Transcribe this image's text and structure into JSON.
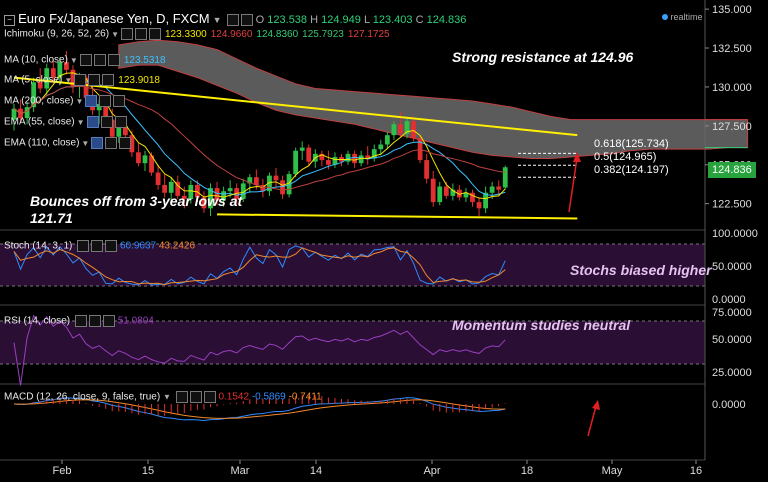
{
  "header": {
    "title": "Euro Fx/Japanese Yen, D, FXCM",
    "ohlc": {
      "o_label": "O",
      "o": "123.538",
      "h_label": "H",
      "h": "124.949",
      "l_label": "L",
      "l": "123.403",
      "c_label": "C",
      "c": "124.836"
    },
    "logo": "realtime"
  },
  "indicators": [
    {
      "label": "Ichimoku (9, 26, 52, 26)",
      "values": [
        "123.3300",
        "124.9660",
        "124.8360",
        "125.7923",
        "127.1725"
      ],
      "colors": [
        "#f2e600",
        "#e04040",
        "#2fd07a",
        "#3ec06a",
        "#e04040"
      ]
    },
    {
      "label": "MA (10, close)",
      "values": [
        "123.5318"
      ],
      "colors": [
        "#3cc0ff"
      ]
    },
    {
      "label": "MA (5, close)",
      "values": [
        "123.9018"
      ],
      "colors": [
        "#f2e600"
      ]
    },
    {
      "label": "MA (200, close)",
      "values": [],
      "colors": []
    },
    {
      "label": "EMA (55, close)",
      "values": [],
      "colors": []
    },
    {
      "label": "EMA (110, close)",
      "values": [],
      "colors": []
    }
  ],
  "annotations": {
    "resistance": "Strong resistance at 124.96",
    "bounce_line1": "Bounces off from 3-year lows at",
    "bounce_line2": "121.71",
    "stochs": "Stochs biased higher",
    "momentum": "Momentum studies neutral"
  },
  "fib_labels": [
    "0.618(125.734)",
    "0.5(124.965)",
    "0.382(124.197)"
  ],
  "last_price": "124.836",
  "panes": {
    "stoch": {
      "label": "Stoch (14, 3, 1)",
      "values": [
        "60.9637",
        "43.2426"
      ],
      "axis": [
        "100.0000",
        "50.0000",
        "0.0000"
      ]
    },
    "rsi": {
      "label": "RSI (14, close)",
      "values": [
        "51.0804"
      ],
      "axis": [
        "75.0000",
        "50.0000",
        "25.0000"
      ]
    },
    "macd": {
      "label": "MACD (12, 26, close, 9, false, true)",
      "values": [
        "0.1542",
        "-0.5869",
        "-0.7411"
      ],
      "axis": [
        "0.0000"
      ]
    }
  },
  "colors": {
    "up": "#2fc04a",
    "down": "#e23030",
    "cloud": "#6b6b6b",
    "trend": "#ffef00",
    "ma10": "#3cc0ff",
    "ma5": "#f2e600",
    "stoch_k": "#2e8bff",
    "stoch_d": "#f08a2c",
    "rsi": "#9a3fc0",
    "macd": "#2e8bff",
    "signal": "#f08a2c",
    "hist": "#e23030",
    "band": "#2a0e34"
  },
  "chart_data": {
    "type": "candlestick",
    "price_axis_ticks": [
      135.0,
      132.5,
      130.0,
      127.5,
      125.0,
      122.5
    ],
    "price_axis_labels": [
      "135.000",
      "132.500",
      "130.000",
      "127.500",
      "125.000",
      "122.500"
    ],
    "x_tick_labels": [
      "Feb",
      "15",
      "Mar",
      "14",
      "Apr",
      "18",
      "May",
      "16"
    ],
    "ylim": [
      121.0,
      135.2
    ],
    "candles": [
      {
        "o": 127.9,
        "h": 128.9,
        "l": 127.2,
        "c": 128.6
      },
      {
        "o": 128.6,
        "h": 129.2,
        "l": 127.7,
        "c": 128.0
      },
      {
        "o": 128.0,
        "h": 129.0,
        "l": 127.6,
        "c": 128.7
      },
      {
        "o": 128.7,
        "h": 130.6,
        "l": 128.4,
        "c": 130.3
      },
      {
        "o": 130.3,
        "h": 131.2,
        "l": 129.6,
        "c": 129.9
      },
      {
        "o": 129.9,
        "h": 131.5,
        "l": 129.5,
        "c": 131.2
      },
      {
        "o": 131.2,
        "h": 131.8,
        "l": 130.2,
        "c": 130.6
      },
      {
        "o": 130.6,
        "h": 131.9,
        "l": 130.1,
        "c": 131.6
      },
      {
        "o": 131.6,
        "h": 132.3,
        "l": 130.8,
        "c": 131.1
      },
      {
        "o": 131.1,
        "h": 131.4,
        "l": 129.6,
        "c": 130.0
      },
      {
        "o": 130.0,
        "h": 130.9,
        "l": 129.3,
        "c": 130.6
      },
      {
        "o": 130.6,
        "h": 130.8,
        "l": 129.0,
        "c": 129.3
      },
      {
        "o": 129.3,
        "h": 130.1,
        "l": 128.2,
        "c": 128.5
      },
      {
        "o": 128.5,
        "h": 129.2,
        "l": 127.6,
        "c": 128.9
      },
      {
        "o": 128.9,
        "h": 129.3,
        "l": 127.6,
        "c": 127.9
      },
      {
        "o": 127.9,
        "h": 128.6,
        "l": 126.5,
        "c": 126.8
      },
      {
        "o": 126.8,
        "h": 127.7,
        "l": 126.4,
        "c": 127.5
      },
      {
        "o": 127.5,
        "h": 127.9,
        "l": 126.6,
        "c": 126.9
      },
      {
        "o": 126.9,
        "h": 127.2,
        "l": 125.5,
        "c": 125.8
      },
      {
        "o": 125.8,
        "h": 126.4,
        "l": 124.9,
        "c": 125.1
      },
      {
        "o": 125.1,
        "h": 125.9,
        "l": 124.6,
        "c": 125.6
      },
      {
        "o": 125.6,
        "h": 125.8,
        "l": 124.3,
        "c": 124.5
      },
      {
        "o": 124.5,
        "h": 125.0,
        "l": 123.4,
        "c": 123.7
      },
      {
        "o": 123.7,
        "h": 124.4,
        "l": 122.9,
        "c": 123.2
      },
      {
        "o": 123.2,
        "h": 124.2,
        "l": 122.6,
        "c": 123.9
      },
      {
        "o": 123.9,
        "h": 124.3,
        "l": 122.8,
        "c": 123.0
      },
      {
        "o": 123.0,
        "h": 123.6,
        "l": 122.2,
        "c": 122.8
      },
      {
        "o": 122.8,
        "h": 124.0,
        "l": 122.5,
        "c": 123.7
      },
      {
        "o": 123.7,
        "h": 124.0,
        "l": 122.6,
        "c": 122.9
      },
      {
        "o": 122.9,
        "h": 123.3,
        "l": 121.9,
        "c": 122.2
      },
      {
        "o": 122.2,
        "h": 123.8,
        "l": 121.7,
        "c": 123.5
      },
      {
        "o": 123.5,
        "h": 123.9,
        "l": 122.4,
        "c": 122.7
      },
      {
        "o": 122.7,
        "h": 123.6,
        "l": 122.3,
        "c": 123.3
      },
      {
        "o": 123.3,
        "h": 124.0,
        "l": 122.9,
        "c": 123.5
      },
      {
        "o": 123.5,
        "h": 123.8,
        "l": 122.4,
        "c": 122.8
      },
      {
        "o": 122.8,
        "h": 124.1,
        "l": 122.6,
        "c": 123.8
      },
      {
        "o": 123.8,
        "h": 124.4,
        "l": 123.2,
        "c": 124.2
      },
      {
        "o": 124.2,
        "h": 124.7,
        "l": 123.4,
        "c": 123.7
      },
      {
        "o": 123.7,
        "h": 124.1,
        "l": 122.9,
        "c": 123.3
      },
      {
        "o": 123.3,
        "h": 124.5,
        "l": 123.0,
        "c": 124.3
      },
      {
        "o": 124.3,
        "h": 124.8,
        "l": 123.6,
        "c": 124.0
      },
      {
        "o": 124.0,
        "h": 124.3,
        "l": 122.8,
        "c": 123.1
      },
      {
        "o": 123.1,
        "h": 124.6,
        "l": 122.9,
        "c": 124.4
      },
      {
        "o": 124.4,
        "h": 126.1,
        "l": 124.2,
        "c": 125.9
      },
      {
        "o": 125.9,
        "h": 126.5,
        "l": 125.3,
        "c": 126.1
      },
      {
        "o": 126.1,
        "h": 126.3,
        "l": 124.9,
        "c": 125.2
      },
      {
        "o": 125.2,
        "h": 126.0,
        "l": 124.8,
        "c": 125.7
      },
      {
        "o": 125.7,
        "h": 125.9,
        "l": 124.9,
        "c": 125.3
      },
      {
        "o": 125.3,
        "h": 125.9,
        "l": 124.7,
        "c": 125.0
      },
      {
        "o": 125.0,
        "h": 125.8,
        "l": 124.8,
        "c": 125.5
      },
      {
        "o": 125.5,
        "h": 125.7,
        "l": 124.9,
        "c": 125.2
      },
      {
        "o": 125.2,
        "h": 125.9,
        "l": 125.0,
        "c": 125.7
      },
      {
        "o": 125.7,
        "h": 125.9,
        "l": 124.8,
        "c": 125.1
      },
      {
        "o": 125.1,
        "h": 125.9,
        "l": 124.9,
        "c": 125.6
      },
      {
        "o": 125.6,
        "h": 126.2,
        "l": 125.0,
        "c": 125.4
      },
      {
        "o": 125.4,
        "h": 126.3,
        "l": 125.2,
        "c": 126.0
      },
      {
        "o": 126.0,
        "h": 126.6,
        "l": 125.6,
        "c": 126.3
      },
      {
        "o": 126.3,
        "h": 127.1,
        "l": 126.0,
        "c": 126.9
      },
      {
        "o": 126.9,
        "h": 127.8,
        "l": 126.6,
        "c": 127.6
      },
      {
        "o": 127.6,
        "h": 128.4,
        "l": 126.8,
        "c": 127.0
      },
      {
        "o": 127.0,
        "h": 128.0,
        "l": 126.7,
        "c": 127.8
      },
      {
        "o": 127.8,
        "h": 128.1,
        "l": 126.5,
        "c": 126.7
      },
      {
        "o": 126.7,
        "h": 126.9,
        "l": 125.1,
        "c": 125.3
      },
      {
        "o": 125.3,
        "h": 125.7,
        "l": 123.8,
        "c": 124.1
      },
      {
        "o": 124.1,
        "h": 124.6,
        "l": 122.3,
        "c": 122.6
      },
      {
        "o": 122.6,
        "h": 123.9,
        "l": 122.4,
        "c": 123.6
      },
      {
        "o": 123.6,
        "h": 123.9,
        "l": 122.8,
        "c": 123.0
      },
      {
        "o": 123.0,
        "h": 123.8,
        "l": 122.7,
        "c": 123.4
      },
      {
        "o": 123.4,
        "h": 123.7,
        "l": 122.7,
        "c": 122.9
      },
      {
        "o": 122.9,
        "h": 123.5,
        "l": 122.6,
        "c": 123.2
      },
      {
        "o": 123.2,
        "h": 123.4,
        "l": 122.3,
        "c": 122.6
      },
      {
        "o": 122.6,
        "h": 122.9,
        "l": 121.7,
        "c": 122.2
      },
      {
        "o": 122.2,
        "h": 123.6,
        "l": 121.9,
        "c": 123.2
      },
      {
        "o": 123.2,
        "h": 123.9,
        "l": 122.8,
        "c": 123.6
      },
      {
        "o": 123.6,
        "h": 124.0,
        "l": 123.0,
        "c": 123.4
      },
      {
        "o": 123.538,
        "h": 124.949,
        "l": 123.403,
        "c": 124.836
      }
    ],
    "cloud": {
      "upper": [
        132.7,
        132.9,
        133.0,
        132.9,
        132.7,
        132.4,
        131.8,
        131.2,
        130.7,
        130.2,
        129.9,
        129.8,
        129.7,
        129.6,
        129.5,
        129.4,
        129.3,
        129.2,
        129.1,
        128.9,
        128.7,
        128.4,
        128.1,
        127.9,
        127.9,
        127.9,
        127.9,
        127.9,
        127.9,
        127.9,
        127.9,
        127.9,
        127.9
      ],
      "lower": [
        131.2,
        131.4,
        131.4,
        131.0,
        130.6,
        130.1,
        129.6,
        129.0,
        128.5,
        128.2,
        128.0,
        127.8,
        127.6,
        127.3,
        127.0,
        126.7,
        126.4,
        126.1,
        125.8,
        125.6,
        125.5,
        125.4,
        125.4,
        125.5,
        125.6,
        125.7,
        125.9,
        126.0,
        126.0,
        126.0,
        126.0,
        126.1,
        126.1
      ],
      "x_start": 16,
      "step": 3
    },
    "resistance_line": {
      "from": {
        "bar": 0,
        "price": 130.6
      },
      "to": {
        "bar": 86,
        "price": 126.9
      }
    },
    "support_line": {
      "from": {
        "bar": 31,
        "price": 121.81
      },
      "to": {
        "bar": 86,
        "price": 121.55
      }
    },
    "fib_levels": [
      125.734,
      124.965,
      124.197
    ]
  }
}
